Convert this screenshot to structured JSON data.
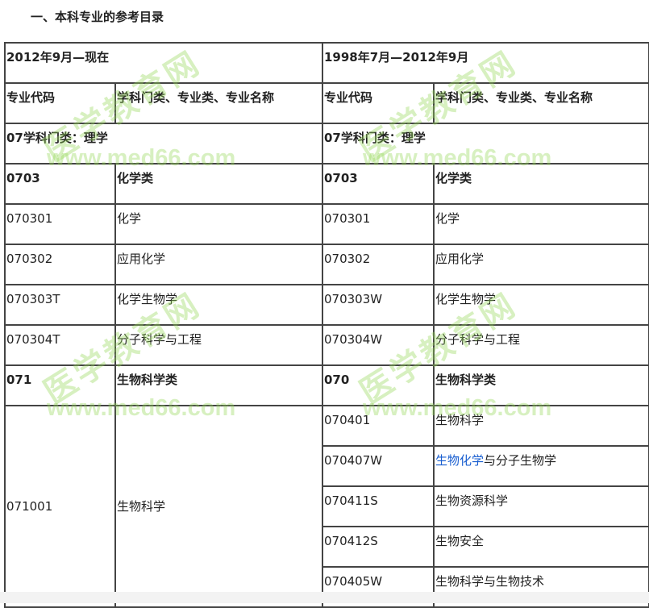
{
  "title": "一、本科专业的参考目录",
  "periods": {
    "left": "2012年9月—现在",
    "right": "1998年7月—2012年9月"
  },
  "headers": {
    "code": "专业代码",
    "name": "学科门类、专业类、专业名称"
  },
  "discipline": {
    "left": "07学科门类：理学",
    "right": "07学科门类：理学"
  },
  "rows": [
    {
      "lcode": "0703",
      "lname": "化学类",
      "rcode": "0703",
      "rname": "化学类",
      "bold": true
    },
    {
      "lcode": "070301",
      "lname": "化学",
      "rcode": "070301",
      "rname": "化学"
    },
    {
      "lcode": "070302",
      "lname": "应用化学",
      "rcode": "070302",
      "rname": "应用化学"
    },
    {
      "lcode": "070303T",
      "lname": "化学生物学",
      "rcode": "070303W",
      "rname": "化学生物学"
    },
    {
      "lcode": "070304T",
      "lname": "分子科学与工程",
      "rcode": "070304W",
      "rname": "分子科学与工程"
    },
    {
      "lcode": "071",
      "lname": "生物科学类",
      "rcode": "070",
      "rname": "生物科学类",
      "bold": true
    }
  ],
  "bio": {
    "lcode": "071001",
    "lname": "生物科学",
    "right": [
      {
        "code": "070401",
        "name": "生物科学"
      },
      {
        "code": "070407W",
        "name_link": "生物化学",
        "name_rest": "与分子生物学"
      },
      {
        "code": "070411S",
        "name": "生物资源科学"
      },
      {
        "code": "070412S",
        "name": "生物安全"
      },
      {
        "code": "070405W",
        "name": "生物科学与生物技术"
      }
    ]
  },
  "watermark": {
    "cn": "医学教育网",
    "url": "www.med66.com"
  },
  "colors": {
    "link": "#1a5fd0",
    "watermark": "#96d75a",
    "border": "#444444"
  }
}
